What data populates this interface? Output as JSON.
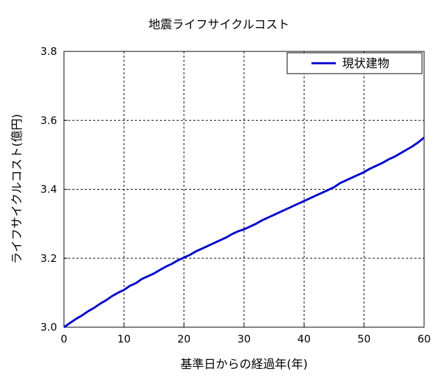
{
  "chart_data": {
    "type": "line",
    "title": "地震ライフサイクルコスト",
    "xlabel": "基準日からの経過年(年)",
    "ylabel": "ライフサイクルコスト(億円)",
    "xlim": [
      0,
      60
    ],
    "ylim": [
      3.0,
      3.8
    ],
    "x_ticks": [
      "0",
      "10",
      "20",
      "30",
      "40",
      "50",
      "60"
    ],
    "y_ticks": [
      "3.0",
      "3.2",
      "3.4",
      "3.6",
      "3.8"
    ],
    "grid": true,
    "legend_position": "top-right",
    "series": [
      {
        "name": "現状建物",
        "color": "#0000cc",
        "x": [
          0,
          1,
          2,
          3,
          4,
          5,
          6,
          7,
          8,
          9,
          10,
          11,
          12,
          13,
          14,
          15,
          16,
          17,
          18,
          19,
          20,
          21,
          22,
          23,
          24,
          25,
          26,
          27,
          28,
          29,
          30,
          31,
          32,
          33,
          34,
          35,
          36,
          37,
          38,
          39,
          40,
          41,
          42,
          43,
          44,
          45,
          46,
          47,
          48,
          49,
          50,
          51,
          52,
          53,
          54,
          55,
          56,
          57,
          58,
          59,
          60
        ],
        "values": [
          3.0,
          3.012,
          3.024,
          3.034,
          3.046,
          3.056,
          3.068,
          3.078,
          3.09,
          3.1,
          3.108,
          3.12,
          3.128,
          3.14,
          3.148,
          3.156,
          3.166,
          3.176,
          3.184,
          3.194,
          3.202,
          3.21,
          3.22,
          3.228,
          3.236,
          3.244,
          3.252,
          3.26,
          3.27,
          3.278,
          3.284,
          3.292,
          3.3,
          3.31,
          3.318,
          3.326,
          3.334,
          3.342,
          3.35,
          3.358,
          3.366,
          3.374,
          3.382,
          3.39,
          3.398,
          3.406,
          3.418,
          3.426,
          3.434,
          3.442,
          3.45,
          3.46,
          3.468,
          3.476,
          3.486,
          3.494,
          3.504,
          3.514,
          3.524,
          3.536,
          3.55
        ]
      }
    ]
  }
}
